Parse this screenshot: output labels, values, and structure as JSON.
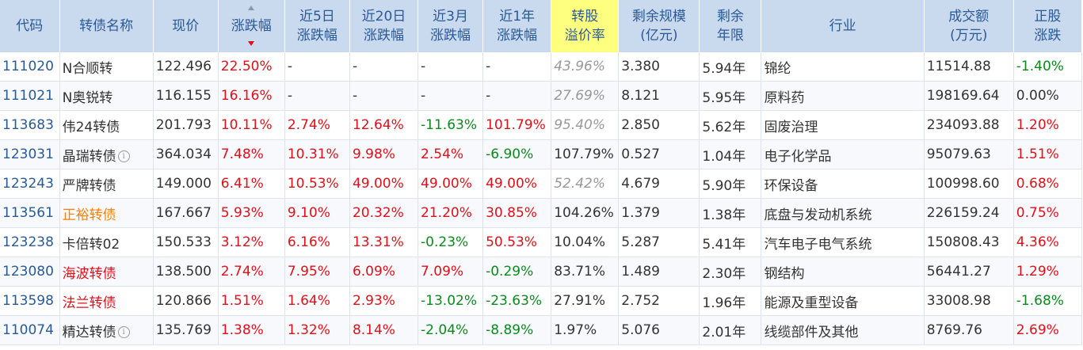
{
  "headers": {
    "code": "代码",
    "name": "转债名称",
    "price": "现价",
    "change": "涨跌幅",
    "chg5d_1": "近5日",
    "chg5d_2": "涨跌幅",
    "chg20d_1": "近20日",
    "chg20d_2": "涨跌幅",
    "chg3m_1": "近3月",
    "chg3m_2": "涨跌幅",
    "chg1y_1": "近1年",
    "chg1y_2": "涨跌幅",
    "premium_1": "转股",
    "premium_2": "溢价率",
    "scale_1": "剩余规模",
    "scale_2": "(亿元)",
    "years_1": "剩余",
    "years_2": "年限",
    "industry": "行业",
    "turnover_1": "成交额",
    "turnover_2": "(万元)",
    "stock_1": "正股",
    "stock_2": "涨跌"
  },
  "info_symbol": "i",
  "rows": [
    {
      "code": "111020",
      "name": "N合顺转",
      "price": "122.496",
      "change": "22.50%",
      "chg5d": "-",
      "chg20d": "-",
      "chg3m": "-",
      "chg1y": "-",
      "premium": "43.96%",
      "scale": "3.380",
      "years": "5.94年",
      "industry": "锦纶",
      "turnover": "11514.88",
      "stock": "-1.40%"
    },
    {
      "code": "111021",
      "name": "N奥锐转",
      "price": "116.155",
      "change": "16.16%",
      "chg5d": "-",
      "chg20d": "-",
      "chg3m": "-",
      "chg1y": "-",
      "premium": "27.69%",
      "scale": "8.121",
      "years": "5.95年",
      "industry": "原料药",
      "turnover": "198169.64",
      "stock": "0.00%"
    },
    {
      "code": "113683",
      "name": "伟24转债",
      "price": "201.793",
      "change": "10.11%",
      "chg5d": "2.74%",
      "chg20d": "12.64%",
      "chg3m": "-11.63%",
      "chg1y": "101.79%",
      "premium": "95.40%",
      "scale": "2.850",
      "years": "5.62年",
      "industry": "固废治理",
      "turnover": "234093.88",
      "stock": "1.20%"
    },
    {
      "code": "123031",
      "name": "晶瑞转债",
      "price": "364.034",
      "change": "7.48%",
      "chg5d": "10.31%",
      "chg20d": "9.98%",
      "chg3m": "2.54%",
      "chg1y": "-6.90%",
      "premium": "107.79%",
      "scale": "0.527",
      "years": "1.04年",
      "industry": "电子化学品",
      "turnover": "95079.63",
      "stock": "1.51%"
    },
    {
      "code": "123243",
      "name": "严牌转债",
      "price": "149.000",
      "change": "6.41%",
      "chg5d": "10.53%",
      "chg20d": "49.00%",
      "chg3m": "49.00%",
      "chg1y": "49.00%",
      "premium": "52.42%",
      "scale": "4.679",
      "years": "5.90年",
      "industry": "环保设备",
      "turnover": "100998.60",
      "stock": "0.68%"
    },
    {
      "code": "113561",
      "name": "正裕转债",
      "price": "167.667",
      "change": "5.93%",
      "chg5d": "9.10%",
      "chg20d": "20.32%",
      "chg3m": "21.20%",
      "chg1y": "30.85%",
      "premium": "104.26%",
      "scale": "1.379",
      "years": "1.38年",
      "industry": "底盘与发动机系统",
      "turnover": "226159.24",
      "stock": "0.75%"
    },
    {
      "code": "123238",
      "name": "卡倍转02",
      "price": "150.533",
      "change": "3.12%",
      "chg5d": "6.16%",
      "chg20d": "13.31%",
      "chg3m": "-0.23%",
      "chg1y": "50.53%",
      "premium": "10.04%",
      "scale": "5.287",
      "years": "5.41年",
      "industry": "汽车电子电气系统",
      "turnover": "150808.43",
      "stock": "4.36%"
    },
    {
      "code": "123080",
      "name": "海波转债",
      "price": "138.500",
      "change": "2.74%",
      "chg5d": "7.95%",
      "chg20d": "6.09%",
      "chg3m": "7.09%",
      "chg1y": "-0.29%",
      "premium": "83.71%",
      "scale": "1.489",
      "years": "2.30年",
      "industry": "钢结构",
      "turnover": "56441.27",
      "stock": "1.29%"
    },
    {
      "code": "113598",
      "name": "法兰转债",
      "price": "120.866",
      "change": "1.51%",
      "chg5d": "1.64%",
      "chg20d": "2.93%",
      "chg3m": "-13.02%",
      "chg1y": "-23.63%",
      "premium": "27.91%",
      "scale": "2.752",
      "years": "1.96年",
      "industry": "能源及重型设备",
      "turnover": "33008.98",
      "stock": "-1.68%"
    },
    {
      "code": "110074",
      "name": "精达转债",
      "price": "135.769",
      "change": "1.38%",
      "chg5d": "1.32%",
      "chg20d": "8.14%",
      "chg3m": "-2.04%",
      "chg1y": "-8.89%",
      "premium": "1.97%",
      "scale": "5.076",
      "years": "2.01年",
      "industry": "线缆部件及其他",
      "turnover": "8769.76",
      "stock": "2.69%"
    }
  ],
  "row_styles": [
    {
      "name": "",
      "change": "red",
      "c5": "",
      "c20": "",
      "c3": "",
      "c1": "",
      "prem": "gray-it",
      "stock": "green",
      "info": false
    },
    {
      "name": "",
      "change": "red",
      "c5": "",
      "c20": "",
      "c3": "",
      "c1": "",
      "prem": "gray-it",
      "stock": "",
      "info": false
    },
    {
      "name": "",
      "change": "red",
      "c5": "red",
      "c20": "red",
      "c3": "green",
      "c1": "red",
      "prem": "gray-it",
      "stock": "red",
      "info": false
    },
    {
      "name": "",
      "change": "red",
      "c5": "red",
      "c20": "red",
      "c3": "red",
      "c1": "green",
      "prem": "",
      "stock": "red",
      "info": true
    },
    {
      "name": "",
      "change": "red",
      "c5": "red",
      "c20": "red",
      "c3": "red",
      "c1": "red",
      "prem": "gray-it",
      "stock": "red",
      "info": false
    },
    {
      "name": "orange",
      "change": "red",
      "c5": "red",
      "c20": "red",
      "c3": "red",
      "c1": "red",
      "prem": "",
      "stock": "red",
      "info": false
    },
    {
      "name": "",
      "change": "red",
      "c5": "red",
      "c20": "red",
      "c3": "green",
      "c1": "red",
      "prem": "",
      "stock": "red",
      "info": false
    },
    {
      "name": "red",
      "change": "red",
      "c5": "red",
      "c20": "red",
      "c3": "red",
      "c1": "green",
      "prem": "",
      "stock": "red",
      "info": false
    },
    {
      "name": "red",
      "change": "red",
      "c5": "red",
      "c20": "red",
      "c3": "green",
      "c1": "green",
      "prem": "",
      "stock": "green",
      "info": false
    },
    {
      "name": "",
      "change": "red",
      "c5": "red",
      "c20": "red",
      "c3": "green",
      "c1": "green",
      "prem": "",
      "stock": "red",
      "info": true
    }
  ],
  "colors": {
    "header_bg": "#c9d9ee",
    "header_text": "#2a5a96",
    "highlight_header_bg": "#ffff7f",
    "up": "#e0101a",
    "down": "#0a8a1e",
    "code_link": "#2a5a96",
    "orange_name": "#ff7f00"
  }
}
